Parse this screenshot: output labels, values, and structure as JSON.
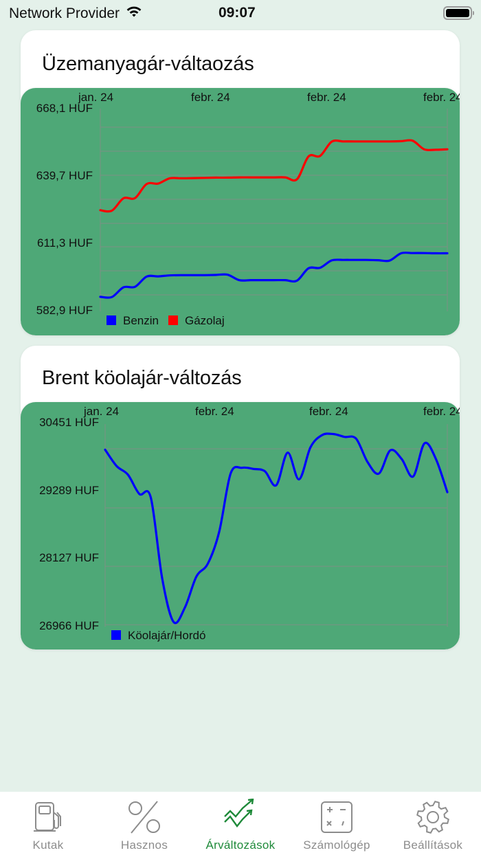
{
  "status_bar": {
    "carrier": "Network Provider",
    "time": "09:07",
    "wifi_icon": "wifi-icon",
    "battery_icon": "battery-full-icon"
  },
  "cards": [
    {
      "title": "Üzemanyagár-váltaozás"
    },
    {
      "title": "Brent köolajár-változás"
    }
  ],
  "tab_bar": {
    "items": [
      {
        "label": "Kutak",
        "icon": "fuel-pump-icon",
        "active": false
      },
      {
        "label": "Hasznos",
        "icon": "percent-icon",
        "active": false
      },
      {
        "label": "Árváltozások",
        "icon": "trend-arrows-icon",
        "active": true
      },
      {
        "label": "Számológép",
        "icon": "calculator-icon",
        "active": false
      },
      {
        "label": "Beállítások",
        "icon": "gear-icon",
        "active": false
      }
    ],
    "active_color": "#1f8a3a",
    "inactive_color": "#8c8c8c"
  },
  "colors": {
    "background": "#e4f1ea",
    "chart_panel": "#4ea877",
    "benzin": "#0000ff",
    "gazolaj": "#ff0000",
    "grid": "#7f8f84"
  },
  "chart_data": [
    {
      "type": "line",
      "title": "Üzemanyagár-váltaozás",
      "xlabel": "",
      "ylabel": "",
      "x_tick_labels": [
        "jan. 24",
        "febr. 24",
        "febr. 24",
        "febr. 24"
      ],
      "y_tick_labels": [
        "668,1 HUF",
        "639,7 HUF",
        "611,3 HUF",
        "582,9 HUF"
      ],
      "ylim": [
        582.9,
        668.1
      ],
      "grid": true,
      "legend_position": "bottom-left",
      "x": [
        0,
        1,
        2,
        3,
        4,
        5,
        6,
        7,
        8,
        9,
        10,
        11,
        12,
        13,
        14,
        15,
        16,
        17,
        18,
        19,
        20,
        21,
        22,
        23,
        24,
        25,
        26,
        27,
        28,
        29,
        30
      ],
      "series": [
        {
          "name": "Benzin",
          "color": "#0000ff",
          "values": [
            589.0,
            588.9,
            593.0,
            593.2,
            597.5,
            597.6,
            598.0,
            598.1,
            598.1,
            598.1,
            598.2,
            598.3,
            596.0,
            596.0,
            596.0,
            596.0,
            596.0,
            595.8,
            601.0,
            601.2,
            604.3,
            604.5,
            604.5,
            604.5,
            604.4,
            604.2,
            607.3,
            607.4,
            607.4,
            607.3,
            607.3
          ]
        },
        {
          "name": "Gázolaj",
          "color": "#ff0000",
          "values": [
            625.4,
            625.2,
            630.4,
            630.5,
            636.4,
            636.6,
            638.8,
            638.8,
            638.9,
            639.0,
            639.1,
            639.1,
            639.2,
            639.2,
            639.2,
            639.2,
            639.2,
            638.4,
            648.0,
            648.2,
            654.2,
            654.3,
            654.3,
            654.3,
            654.3,
            654.3,
            654.4,
            654.6,
            651.0,
            650.8,
            651.0
          ]
        }
      ]
    },
    {
      "type": "line",
      "title": "Brent köolajár-változás",
      "xlabel": "",
      "ylabel": "",
      "x_tick_labels": [
        "jan. 24",
        "febr. 24",
        "febr. 24",
        "febr. 24"
      ],
      "y_tick_labels": [
        "30451 HUF",
        "29289 HUF",
        "28127 HUF",
        "26966 HUF"
      ],
      "ylim": [
        26966,
        30451
      ],
      "grid": true,
      "legend_position": "bottom-left",
      "x": [
        0,
        1,
        2,
        3,
        4,
        5,
        6,
        7,
        8,
        9,
        10,
        11,
        12,
        13,
        14,
        15,
        16,
        17,
        18,
        19,
        20,
        21,
        22,
        23,
        24,
        25,
        26,
        27,
        28,
        29,
        30
      ],
      "series": [
        {
          "name": "Köolajár/Hordó",
          "color": "#0000ff",
          "values": [
            30010,
            29730,
            29580,
            29250,
            29190,
            27800,
            27050,
            27300,
            27830,
            28050,
            28600,
            29600,
            29700,
            29680,
            29640,
            29400,
            29960,
            29500,
            30050,
            30260,
            30280,
            30230,
            30200,
            29800,
            29600,
            30000,
            29850,
            29550,
            30120,
            29850,
            29280
          ]
        }
      ]
    }
  ]
}
